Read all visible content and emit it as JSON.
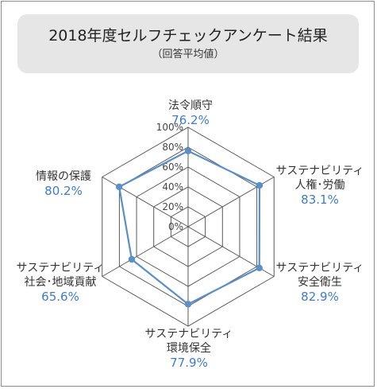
{
  "header": {
    "title": "2018年度セルフチェックアンケート結果",
    "subtitle": "（回答平均値）"
  },
  "chart_data": {
    "type": "radar",
    "title": "2018年度セルフチェックアンケート結果",
    "subtitle": "（回答平均値）",
    "range": [
      0,
      100
    ],
    "ticks": [
      "0%",
      "20%",
      "40%",
      "60%",
      "80%",
      "100%"
    ],
    "categories": [
      {
        "name_lines": [
          "法令順守"
        ],
        "value_label": "76.2%"
      },
      {
        "name_lines": [
          "サステナビリティ",
          "人権･労働"
        ],
        "value_label": "83.1%"
      },
      {
        "name_lines": [
          "サステナビリティ",
          "安全衛生"
        ],
        "value_label": "82.9%"
      },
      {
        "name_lines": [
          "サステナビリティ",
          "環境保全"
        ],
        "value_label": "77.9%"
      },
      {
        "name_lines": [
          "サステナビリティ",
          "社会･地域貢献"
        ],
        "value_label": "65.6%"
      },
      {
        "name_lines": [
          "情報の保護"
        ],
        "value_label": "80.2%"
      }
    ],
    "values": [
      76.2,
      83.1,
      82.9,
      77.9,
      65.6,
      80.2
    ],
    "line_color": "#5b8fc7",
    "grid_color": "#595959"
  }
}
